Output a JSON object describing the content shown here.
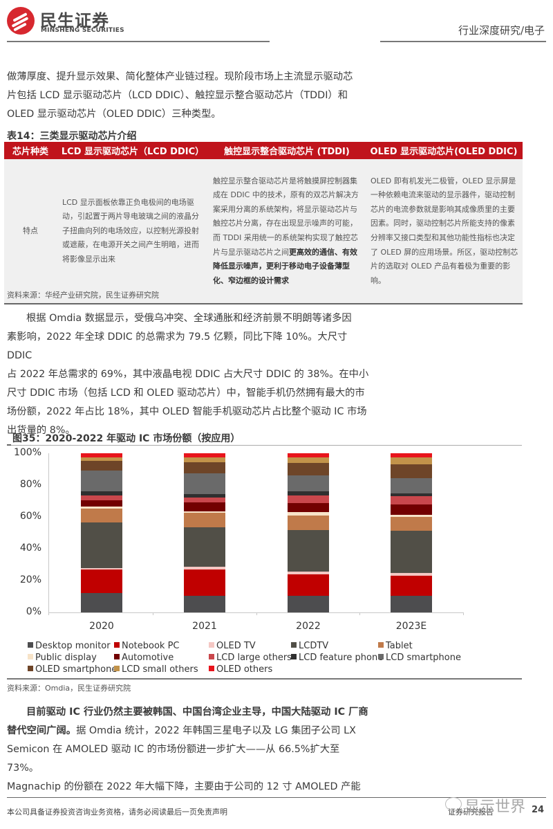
{
  "header": {
    "logo_cn": "民生证券",
    "logo_en": "MINSHENG SECURITIES",
    "section": "行业深度研究/电子",
    "brand_color": "#d7282f"
  },
  "intro_paragraph": {
    "line1": "做薄厚度、提升显示效果、简化整体产业链过程。现阶段市场上主流显示驱动芯",
    "line2": "片包括 LCD 显示驱动芯片（LCD DDIC）、触控显示整合驱动芯片（TDDI）和",
    "line3": "OLED 显示驱动芯片（OLED DDIC）三种类型。"
  },
  "table14": {
    "title": "表14：三类显示驱动芯片介绍",
    "header_color": "#c0141c",
    "headers": [
      "芯片种类",
      "LCD 显示驱动芯片（LCD DDIC）",
      "触控显示整合驱动芯片 (TDDI)",
      "OLED 显示驱动芯片(OLED DDIC)"
    ],
    "row_label": "特点",
    "lcd_text": "LCD 显示面板依靠正负电极间的电场驱动，引起置于两片导电玻璃之间的液晶分子扭曲向列的电场效应，以控制光源投射或遮蔽，在电源开关之间产生明暗，进而将影像显示出来",
    "tddi_text_normal": "触控显示整合驱动芯片是将触摸屏控制器集成在 DDIC 中的技术，原有的双芯片解决方案采用分离的系统架构，将显示驱动芯片与触控芯片分离，存在出现显示噪声的可能，而 TDDI 采用统一的系统架构实现了触控芯片与显示驱动芯片之间",
    "tddi_text_bold": "更高效的通信、有效降低显示噪声，更利于移动电子设备薄型化、窄边框的设计需求",
    "oled_text": "OLED 即有机发光二极管，OLED 显示屏是一种依赖电流来驱动的显示器件，驱动控制芯片的电流参数就是影响其成像质里的主要因素。同时，驱动控制芯片所能支持的像素分辨率又接口类型和其他功能性指标也决定了 OLED 屏的应用场景。所区，驱动控制芯片的选取对 OLED 产品有着极为重要的影响。",
    "source": "资料来源：华经产业研究院，民生证券研究院"
  },
  "omdia_paragraph": {
    "line1": "根据 Omdia 数据显示，受俄乌冲突、全球通胀和经济前景不明朗等诸多因",
    "line2": "素影响，2022 年全球 DDIC 的总需求为 79.5 亿颗，同比下降 10%。大尺寸 DDIC",
    "line3": "占 2022 年总需求的 69%，其中液晶电视 DDIC 占大尺寸 DDIC 的 38%。在中小",
    "line4": "尺寸 DDIC 市场（包括 LCD 和 OLED 驱动芯片）中，智能手机仍然拥有最大的市",
    "line5": "场份额，2022 年占比 18%，其中 OLED 智能手机驱动芯片占比整个驱动 IC 市场",
    "line6": "出货量的 8%。"
  },
  "figure35": {
    "title": "图35：2020-2022 年驱动 IC 市场份额（按应用）",
    "source": "资料来源：Omdia，民生证券研究院"
  },
  "chart_data": {
    "type": "bar",
    "stacked": true,
    "title": "图35：2020-2022 年驱动 IC 市场份额（按应用）",
    "xlabel": "",
    "ylabel": "",
    "ylim": [
      0,
      100
    ],
    "yticks": [
      "0%",
      "20%",
      "40%",
      "60%",
      "80%",
      "100%"
    ],
    "grid": false,
    "legend_position": "bottom",
    "categories": [
      "2020",
      "2021",
      "2022",
      "2023E"
    ],
    "series": [
      {
        "name": "Desktop monitor",
        "color": "#4d4d4f",
        "values": [
          12.3,
          10.6,
          10.6,
          10.4
        ]
      },
      {
        "name": "Notebook PC",
        "color": "#c00000",
        "values": [
          14.8,
          16.5,
          13.3,
          12.5
        ]
      },
      {
        "name": "OLED TV",
        "color": "#f4c7c3",
        "values": [
          0.9,
          1.4,
          1.9,
          1.7
        ]
      },
      {
        "name": "LCDTV",
        "color": "#514f47",
        "values": [
          28.6,
          25.1,
          26.1,
          26.8
        ]
      },
      {
        "name": "Tablet",
        "color": "#c07a4a",
        "values": [
          8.7,
          9.1,
          9.0,
          8.7
        ]
      },
      {
        "name": "Public display",
        "color": "#f7e3c8",
        "values": [
          1.2,
          1.0,
          2.2,
          1.2
        ]
      },
      {
        "name": "Automotive",
        "color": "#720000",
        "values": [
          4.2,
          5.4,
          5.8,
          6.5
        ]
      },
      {
        "name": "LCD large others",
        "color": "#c9474c",
        "values": [
          2.9,
          3.3,
          4.8,
          5.1
        ]
      },
      {
        "name": "LCD feature phone",
        "color": "#2f2f2f",
        "values": [
          2.6,
          2.2,
          2.5,
          2.0
        ]
      },
      {
        "name": "LCD smartphone",
        "color": "#6a6a6a",
        "values": [
          13.0,
          12.8,
          10.1,
          9.6
        ]
      },
      {
        "name": "OLED smartphone",
        "color": "#6e4528",
        "values": [
          6.1,
          7.2,
          7.7,
          8.6
        ]
      },
      {
        "name": "LCD small others",
        "color": "#c2934a",
        "values": [
          2.3,
          2.9,
          3.5,
          4.3
        ]
      },
      {
        "name": "OLED others",
        "color": "#e8141c",
        "values": [
          2.5,
          2.5,
          2.6,
          2.6
        ]
      }
    ]
  },
  "closing_paragraph": {
    "bold_lead": "目前驱动 IC 行业仍然主要被韩国、中国台湾企业主导，中国大陆驱动 IC 厂商替代空间广阔。",
    "line1_rest": "据 Omdia 统计，2022 年韩国三星电子以及 LG 集团子公司 LX",
    "line2": "Semicon 在 AMOLED 驱动 IC 的市场份额进一步扩大——从 66.5%扩大至 73%。",
    "line3": "Magnachip 的份额在 2022 年大幅下降，主要由于公司的 12 寸 AMOLED 产能"
  },
  "footer": {
    "disclaimer": "本公司具备证券投资咨询业务资格，请务必阅读最后一页免责声明",
    "report_type": "证券研究报告",
    "page_number": "24",
    "watermark": "显示世界"
  }
}
